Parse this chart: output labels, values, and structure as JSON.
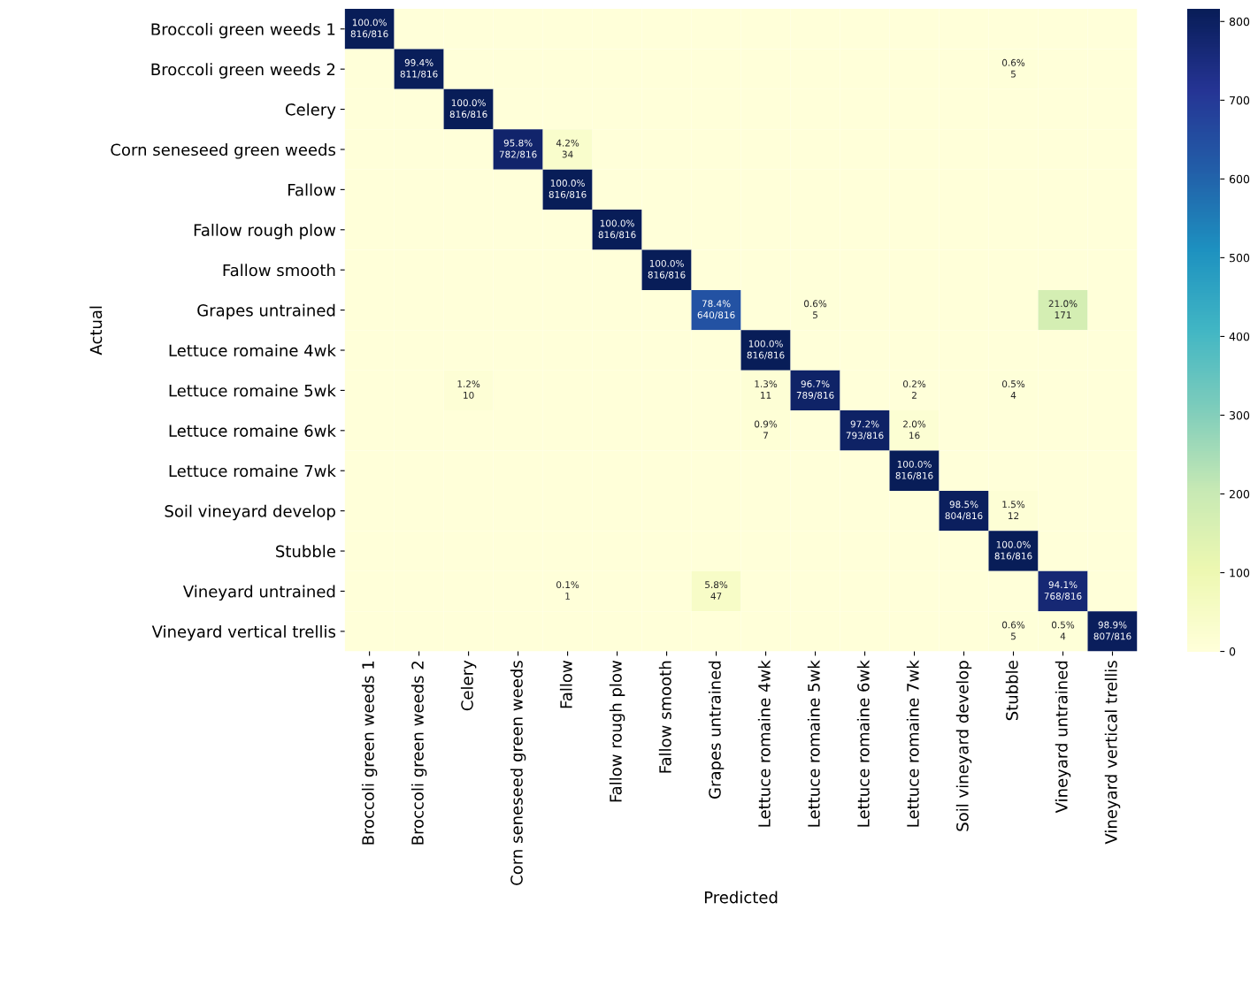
{
  "chart_data": {
    "type": "heatmap",
    "xlabel": "Predicted",
    "ylabel": "Actual",
    "categories": [
      "Broccoli green weeds 1",
      "Broccoli green weeds 2",
      "Celery",
      "Corn seneseed green weeds",
      "Fallow",
      "Fallow rough plow",
      "Fallow smooth",
      "Grapes untrained",
      "Lettuce romaine 4wk",
      "Lettuce romaine 5wk",
      "Lettuce romaine 6wk",
      "Lettuce romaine 7wk",
      "Soil vineyard develop",
      "Stubble",
      "Vineyard untrained",
      "Vineyard vertical trellis"
    ],
    "y_categories": [
      "Broccoli green weeds 1",
      "Broccoli green weeds 2",
      "Celery",
      "Corn seneseed green weeds",
      "Fallow",
      "Fallow rough plow",
      "Fallow smooth",
      "Grapes untrained",
      "Lettuce romaine 4wk",
      "Lettuce romaine 5wk",
      "Lettuce romaine 6wk",
      "Lettuce romaine 7wk",
      "Soil vineyard develop",
      "Stubble",
      "Vineyard untrained",
      "Vineyard vertical trellis"
    ],
    "cells": [
      [
        816,
        0,
        0,
        0,
        0,
        0,
        0,
        0,
        0,
        0,
        0,
        0,
        0,
        0,
        0,
        0
      ],
      [
        0,
        811,
        0,
        0,
        0,
        0,
        0,
        0,
        0,
        0,
        0,
        0,
        0,
        5,
        0,
        0
      ],
      [
        0,
        0,
        816,
        0,
        0,
        0,
        0,
        0,
        0,
        0,
        0,
        0,
        0,
        0,
        0,
        0
      ],
      [
        0,
        0,
        0,
        782,
        34,
        0,
        0,
        0,
        0,
        0,
        0,
        0,
        0,
        0,
        0,
        0
      ],
      [
        0,
        0,
        0,
        0,
        816,
        0,
        0,
        0,
        0,
        0,
        0,
        0,
        0,
        0,
        0,
        0
      ],
      [
        0,
        0,
        0,
        0,
        0,
        816,
        0,
        0,
        0,
        0,
        0,
        0,
        0,
        0,
        0,
        0
      ],
      [
        0,
        0,
        0,
        0,
        0,
        0,
        816,
        0,
        0,
        0,
        0,
        0,
        0,
        0,
        0,
        0
      ],
      [
        0,
        0,
        0,
        0,
        0,
        0,
        0,
        640,
        0,
        5,
        0,
        0,
        0,
        0,
        171,
        0
      ],
      [
        0,
        0,
        0,
        0,
        0,
        0,
        0,
        0,
        816,
        0,
        0,
        0,
        0,
        0,
        0,
        0
      ],
      [
        0,
        0,
        10,
        0,
        0,
        0,
        0,
        0,
        11,
        789,
        0,
        2,
        0,
        4,
        0,
        0
      ],
      [
        0,
        0,
        0,
        0,
        0,
        0,
        0,
        0,
        7,
        0,
        793,
        16,
        0,
        0,
        0,
        0
      ],
      [
        0,
        0,
        0,
        0,
        0,
        0,
        0,
        0,
        0,
        0,
        0,
        816,
        0,
        0,
        0,
        0
      ],
      [
        0,
        0,
        0,
        0,
        0,
        0,
        0,
        0,
        0,
        0,
        0,
        0,
        804,
        12,
        0,
        0
      ],
      [
        0,
        0,
        0,
        0,
        0,
        0,
        0,
        0,
        0,
        0,
        0,
        0,
        0,
        816,
        0,
        0
      ],
      [
        0,
        0,
        0,
        0,
        1,
        0,
        0,
        47,
        0,
        0,
        0,
        0,
        0,
        0,
        768,
        0
      ],
      [
        0,
        0,
        0,
        0,
        0,
        0,
        0,
        0,
        0,
        0,
        0,
        0,
        0,
        5,
        4,
        807
      ]
    ],
    "cell_labels": [
      [
        "100.0%\n816/816",
        null,
        null,
        null,
        null,
        null,
        null,
        null,
        null,
        null,
        null,
        null,
        null,
        null,
        null,
        null
      ],
      [
        null,
        "99.4%\n811/816",
        null,
        null,
        null,
        null,
        null,
        null,
        null,
        null,
        null,
        null,
        null,
        "0.6%\n5",
        null,
        null
      ],
      [
        null,
        null,
        "100.0%\n816/816",
        null,
        null,
        null,
        null,
        null,
        null,
        null,
        null,
        null,
        null,
        null,
        null,
        null
      ],
      [
        null,
        null,
        null,
        "95.8%\n782/816",
        "4.2%\n34",
        null,
        null,
        null,
        null,
        null,
        null,
        null,
        null,
        null,
        null,
        null
      ],
      [
        null,
        null,
        null,
        null,
        "100.0%\n816/816",
        null,
        null,
        null,
        null,
        null,
        null,
        null,
        null,
        null,
        null,
        null
      ],
      [
        null,
        null,
        null,
        null,
        null,
        "100.0%\n816/816",
        null,
        null,
        null,
        null,
        null,
        null,
        null,
        null,
        null,
        null
      ],
      [
        null,
        null,
        null,
        null,
        null,
        null,
        "100.0%\n816/816",
        null,
        null,
        null,
        null,
        null,
        null,
        null,
        null,
        null
      ],
      [
        null,
        null,
        null,
        null,
        null,
        null,
        null,
        "78.4%\n640/816",
        null,
        "0.6%\n5",
        null,
        null,
        null,
        null,
        "21.0%\n171",
        null
      ],
      [
        null,
        null,
        null,
        null,
        null,
        null,
        null,
        null,
        "100.0%\n816/816",
        null,
        null,
        null,
        null,
        null,
        null,
        null
      ],
      [
        null,
        null,
        "1.2%\n10",
        null,
        null,
        null,
        null,
        null,
        "1.3%\n11",
        "96.7%\n789/816",
        null,
        "0.2%\n2",
        null,
        "0.5%\n4",
        null,
        null
      ],
      [
        null,
        null,
        null,
        null,
        null,
        null,
        null,
        null,
        "0.9%\n7",
        null,
        "97.2%\n793/816",
        "2.0%\n16",
        null,
        null,
        null,
        null
      ],
      [
        null,
        null,
        null,
        null,
        null,
        null,
        null,
        null,
        null,
        null,
        null,
        "100.0%\n816/816",
        null,
        null,
        null,
        null
      ],
      [
        null,
        null,
        null,
        null,
        null,
        null,
        null,
        null,
        null,
        null,
        null,
        null,
        "98.5%\n804/816",
        "1.5%\n12",
        null,
        null
      ],
      [
        null,
        null,
        null,
        null,
        null,
        null,
        null,
        null,
        null,
        null,
        null,
        null,
        null,
        "100.0%\n816/816",
        null,
        null
      ],
      [
        null,
        null,
        null,
        null,
        "0.1%\n1",
        null,
        null,
        "5.8%\n47",
        null,
        null,
        null,
        null,
        null,
        null,
        "94.1%\n768/816",
        null
      ],
      [
        null,
        null,
        null,
        null,
        null,
        null,
        null,
        null,
        null,
        null,
        null,
        null,
        null,
        "0.6%\n5",
        "0.5%\n4",
        "98.9%\n807/816"
      ]
    ],
    "clim": [
      0,
      816
    ],
    "cticks": [
      0,
      100,
      200,
      300,
      400,
      500,
      600,
      700,
      800
    ]
  }
}
